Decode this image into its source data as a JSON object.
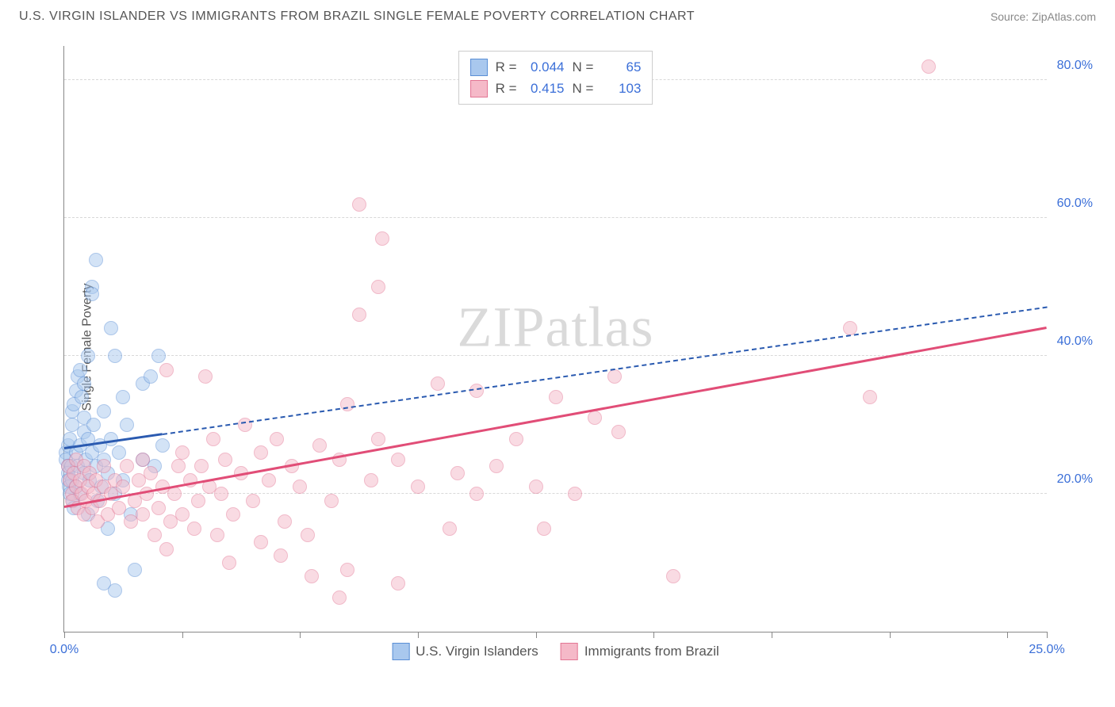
{
  "header": {
    "title": "U.S. VIRGIN ISLANDER VS IMMIGRANTS FROM BRAZIL SINGLE FEMALE POVERTY CORRELATION CHART",
    "source": "Source: ZipAtlas.com"
  },
  "chart": {
    "type": "scatter",
    "ylabel": "Single Female Poverty",
    "watermark_a": "ZIP",
    "watermark_b": "atlas",
    "xlim": [
      0,
      25
    ],
    "ylim": [
      0,
      85
    ],
    "xticks": [
      0,
      3,
      6,
      9,
      12,
      15,
      18,
      21,
      24,
      25
    ],
    "xtick_labels": {
      "0": "0.0%",
      "25": "25.0%"
    },
    "yticks": [
      20,
      40,
      60,
      80
    ],
    "ytick_labels": [
      "20.0%",
      "40.0%",
      "60.0%",
      "80.0%"
    ],
    "grid_color": "#d8d8d8",
    "axis_color": "#888888",
    "point_radius": 9,
    "series": [
      {
        "name": "U.S. Virgin Islanders",
        "fill": "#a9c8ee",
        "stroke": "#5a8fd6",
        "fill_opacity": 0.5,
        "r": 0.044,
        "n": 65,
        "trend": {
          "x1": 0,
          "y1": 26.5,
          "x2": 25,
          "y2": 47,
          "solid_until_x": 2.5,
          "color": "#2a5ab0",
          "dash": true
        },
        "points": [
          [
            0.05,
            26
          ],
          [
            0.05,
            25
          ],
          [
            0.1,
            27
          ],
          [
            0.1,
            24
          ],
          [
            0.1,
            23
          ],
          [
            0.1,
            22
          ],
          [
            0.12,
            21
          ],
          [
            0.15,
            28
          ],
          [
            0.15,
            20
          ],
          [
            0.18,
            24
          ],
          [
            0.2,
            30
          ],
          [
            0.2,
            32
          ],
          [
            0.2,
            22
          ],
          [
            0.22,
            19
          ],
          [
            0.25,
            33
          ],
          [
            0.25,
            18
          ],
          [
            0.3,
            35
          ],
          [
            0.3,
            26
          ],
          [
            0.3,
            21
          ],
          [
            0.35,
            37
          ],
          [
            0.35,
            24
          ],
          [
            0.4,
            38
          ],
          [
            0.4,
            27
          ],
          [
            0.4,
            20
          ],
          [
            0.45,
            34
          ],
          [
            0.5,
            36
          ],
          [
            0.5,
            31
          ],
          [
            0.5,
            29
          ],
          [
            0.5,
            23
          ],
          [
            0.55,
            25
          ],
          [
            0.6,
            40
          ],
          [
            0.6,
            28
          ],
          [
            0.6,
            17
          ],
          [
            0.65,
            22
          ],
          [
            0.7,
            50
          ],
          [
            0.7,
            49
          ],
          [
            0.7,
            26
          ],
          [
            0.75,
            30
          ],
          [
            0.8,
            54
          ],
          [
            0.8,
            24
          ],
          [
            0.85,
            19
          ],
          [
            0.9,
            27
          ],
          [
            0.95,
            21
          ],
          [
            1.0,
            32
          ],
          [
            1.0,
            25
          ],
          [
            1.1,
            23
          ],
          [
            1.1,
            15
          ],
          [
            1.2,
            44
          ],
          [
            1.2,
            28
          ],
          [
            1.3,
            40
          ],
          [
            1.3,
            20
          ],
          [
            1.4,
            26
          ],
          [
            1.5,
            34
          ],
          [
            1.5,
            22
          ],
          [
            1.6,
            30
          ],
          [
            1.7,
            17
          ],
          [
            1.8,
            9
          ],
          [
            2.0,
            36
          ],
          [
            2.0,
            25
          ],
          [
            2.2,
            37
          ],
          [
            2.3,
            24
          ],
          [
            2.4,
            40
          ],
          [
            2.5,
            27
          ],
          [
            1.0,
            7
          ],
          [
            1.3,
            6
          ]
        ]
      },
      {
        "name": "Immigrants from Brazil",
        "fill": "#f5b9c8",
        "stroke": "#e37694",
        "fill_opacity": 0.5,
        "r": 0.415,
        "n": 103,
        "trend": {
          "x1": 0,
          "y1": 18,
          "x2": 25,
          "y2": 44,
          "color": "#e14d77",
          "dash": false
        },
        "points": [
          [
            0.1,
            24
          ],
          [
            0.15,
            22
          ],
          [
            0.2,
            20
          ],
          [
            0.2,
            19
          ],
          [
            0.25,
            23
          ],
          [
            0.3,
            21
          ],
          [
            0.3,
            25
          ],
          [
            0.35,
            18
          ],
          [
            0.4,
            22
          ],
          [
            0.45,
            20
          ],
          [
            0.5,
            24
          ],
          [
            0.5,
            17
          ],
          [
            0.55,
            19
          ],
          [
            0.6,
            21
          ],
          [
            0.65,
            23
          ],
          [
            0.7,
            18
          ],
          [
            0.75,
            20
          ],
          [
            0.8,
            22
          ],
          [
            0.85,
            16
          ],
          [
            0.9,
            19
          ],
          [
            1.0,
            21
          ],
          [
            1.0,
            24
          ],
          [
            1.1,
            17
          ],
          [
            1.2,
            20
          ],
          [
            1.3,
            22
          ],
          [
            1.4,
            18
          ],
          [
            1.5,
            21
          ],
          [
            1.6,
            24
          ],
          [
            1.7,
            16
          ],
          [
            1.8,
            19
          ],
          [
            1.9,
            22
          ],
          [
            2.0,
            17
          ],
          [
            2.0,
            25
          ],
          [
            2.1,
            20
          ],
          [
            2.2,
            23
          ],
          [
            2.3,
            14
          ],
          [
            2.4,
            18
          ],
          [
            2.5,
            21
          ],
          [
            2.6,
            38
          ],
          [
            2.7,
            16
          ],
          [
            2.8,
            20
          ],
          [
            2.9,
            24
          ],
          [
            3.0,
            17
          ],
          [
            3.0,
            26
          ],
          [
            3.2,
            22
          ],
          [
            3.3,
            15
          ],
          [
            3.4,
            19
          ],
          [
            3.5,
            24
          ],
          [
            3.6,
            37
          ],
          [
            3.7,
            21
          ],
          [
            3.8,
            28
          ],
          [
            3.9,
            14
          ],
          [
            4.0,
            20
          ],
          [
            4.1,
            25
          ],
          [
            4.3,
            17
          ],
          [
            4.5,
            23
          ],
          [
            4.6,
            30
          ],
          [
            4.8,
            19
          ],
          [
            5.0,
            26
          ],
          [
            5.0,
            13
          ],
          [
            5.2,
            22
          ],
          [
            5.4,
            28
          ],
          [
            5.6,
            16
          ],
          [
            5.8,
            24
          ],
          [
            6.0,
            21
          ],
          [
            6.2,
            14
          ],
          [
            6.5,
            27
          ],
          [
            6.8,
            19
          ],
          [
            7.0,
            5
          ],
          [
            7.0,
            25
          ],
          [
            7.2,
            33
          ],
          [
            7.5,
            46
          ],
          [
            7.5,
            62
          ],
          [
            7.8,
            22
          ],
          [
            8.0,
            50
          ],
          [
            8.0,
            28
          ],
          [
            8.1,
            57
          ],
          [
            8.5,
            7
          ],
          [
            8.5,
            25
          ],
          [
            9.0,
            21
          ],
          [
            9.5,
            36
          ],
          [
            9.8,
            15
          ],
          [
            10.0,
            23
          ],
          [
            10.5,
            20
          ],
          [
            10.5,
            35
          ],
          [
            11.0,
            24
          ],
          [
            11.5,
            28
          ],
          [
            12.0,
            21
          ],
          [
            12.2,
            15
          ],
          [
            12.5,
            34
          ],
          [
            13.0,
            20
          ],
          [
            13.5,
            31
          ],
          [
            14.0,
            37
          ],
          [
            14.1,
            29
          ],
          [
            15.5,
            8
          ],
          [
            20.0,
            44
          ],
          [
            20.5,
            34
          ],
          [
            22.0,
            82
          ],
          [
            7.2,
            9
          ],
          [
            4.2,
            10
          ],
          [
            5.5,
            11
          ],
          [
            6.3,
            8
          ],
          [
            2.6,
            12
          ]
        ]
      }
    ],
    "legend_labels": {
      "r": "R =",
      "n": "N ="
    }
  }
}
